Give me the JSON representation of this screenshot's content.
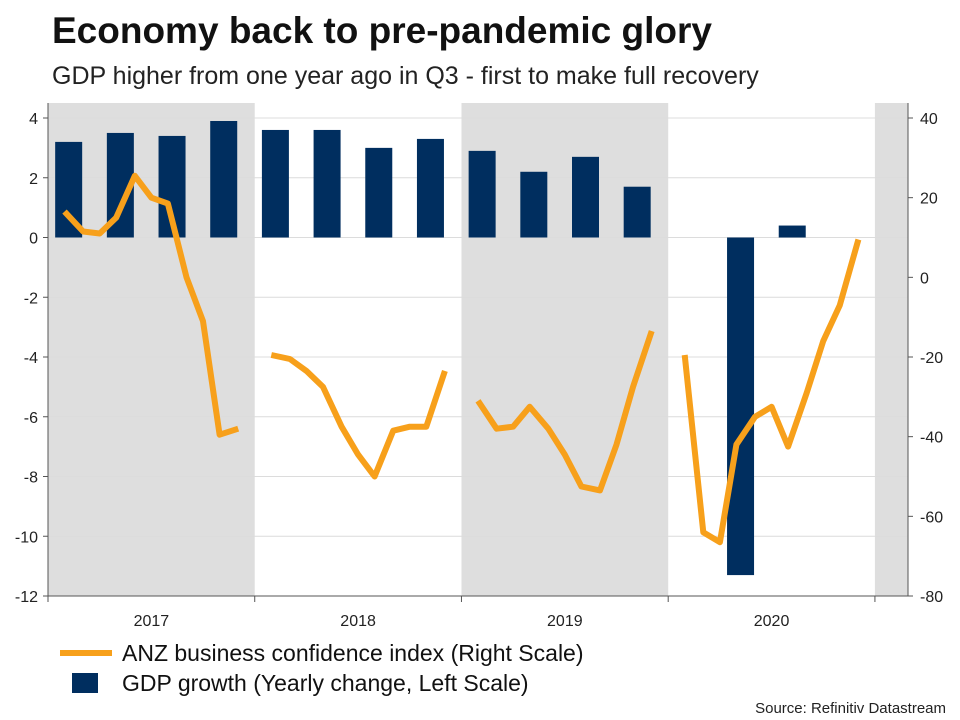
{
  "header": {
    "title": "Economy back to pre-pandemic glory",
    "subtitle": "GDP higher from one year ago in Q3 - first to make full recovery"
  },
  "source": "Source: Refinitiv Datastream",
  "colors": {
    "line": "#f7a01b",
    "bar": "#002e5f",
    "shade": "#dedede",
    "grid": "#dcdcdc"
  },
  "legend": {
    "line_label": "ANZ business confidence index (Right Scale)",
    "bar_label": "GDP growth (Yearly change, Left Scale)"
  },
  "chart_data": {
    "type": "bar+line",
    "title": "Economy back to pre-pandemic glory",
    "subtitle": "GDP higher from one year ago in Q3 - first to make full recovery",
    "x_range": [
      2017.0,
      2021.16
    ],
    "x_ticks": [
      "2017",
      "2018",
      "2019",
      "2020"
    ],
    "shaded_years": [
      [
        2017.0,
        2018.0
      ],
      [
        2019.0,
        2020.0
      ],
      [
        2021.0,
        2021.16
      ]
    ],
    "left_axis": {
      "label": "GDP growth (Yearly change, Left Scale)",
      "ylim": [
        -12,
        4
      ],
      "ticks": [
        4,
        2,
        0,
        -2,
        -4,
        -6,
        -8,
        -10,
        -12
      ]
    },
    "right_axis": {
      "label": "ANZ business confidence index (Right Scale)",
      "ylim": [
        -80,
        40
      ],
      "ticks": [
        40,
        20,
        0,
        -20,
        -40,
        -60,
        -80
      ]
    },
    "bars": {
      "name": "GDP growth (Yearly change, Left Scale)",
      "axis": "left",
      "x": [
        2017.1,
        2017.35,
        2017.6,
        2017.85,
        2018.1,
        2018.35,
        2018.6,
        2018.85,
        2019.1,
        2019.35,
        2019.6,
        2019.85,
        2020.1,
        2020.35,
        2020.6,
        2020.85
      ],
      "values": [
        3.2,
        3.5,
        3.4,
        3.9,
        3.6,
        3.6,
        3.0,
        3.3,
        2.9,
        2.2,
        2.7,
        1.7,
        null,
        -11.3,
        0.4,
        null
      ]
    },
    "line": {
      "name": "ANZ business confidence index (Right Scale)",
      "axis": "right",
      "segments": [
        {
          "x": [
            2017.08,
            2017.17,
            2017.25,
            2017.33,
            2017.42,
            2017.5,
            2017.58,
            2017.67,
            2017.75,
            2017.83,
            2017.92
          ],
          "y": [
            16.5,
            11.5,
            11,
            15,
            25.5,
            20,
            18.5,
            0,
            -11,
            -39.5,
            -38
          ]
        },
        {
          "x": [
            2018.08,
            2018.17,
            2018.25,
            2018.33,
            2018.42,
            2018.5,
            2018.58,
            2018.67,
            2018.75,
            2018.83,
            2018.92
          ],
          "y": [
            -19.5,
            -20.5,
            -23.5,
            -27.5,
            -37.5,
            -44.5,
            -50,
            -38.5,
            -37.5,
            -37.5,
            -23.5
          ]
        },
        {
          "x": [
            2019.08,
            2019.17,
            2019.25,
            2019.33,
            2019.42,
            2019.5,
            2019.58,
            2019.67,
            2019.75,
            2019.83,
            2019.92
          ],
          "y": [
            -31,
            -38,
            -37.5,
            -32.5,
            -38,
            -44.5,
            -52.5,
            -53.5,
            -42,
            -27.5,
            -13.5
          ]
        },
        {
          "x": [
            2020.08,
            2020.17,
            2020.25,
            2020.33,
            2020.42,
            2020.5,
            2020.58,
            2020.67,
            2020.75,
            2020.83,
            2020.92
          ],
          "y": [
            -19.5,
            -64,
            -66.5,
            -42,
            -35,
            -32.5,
            -42.5,
            -29,
            -16,
            -7,
            9.5
          ]
        }
      ]
    }
  }
}
